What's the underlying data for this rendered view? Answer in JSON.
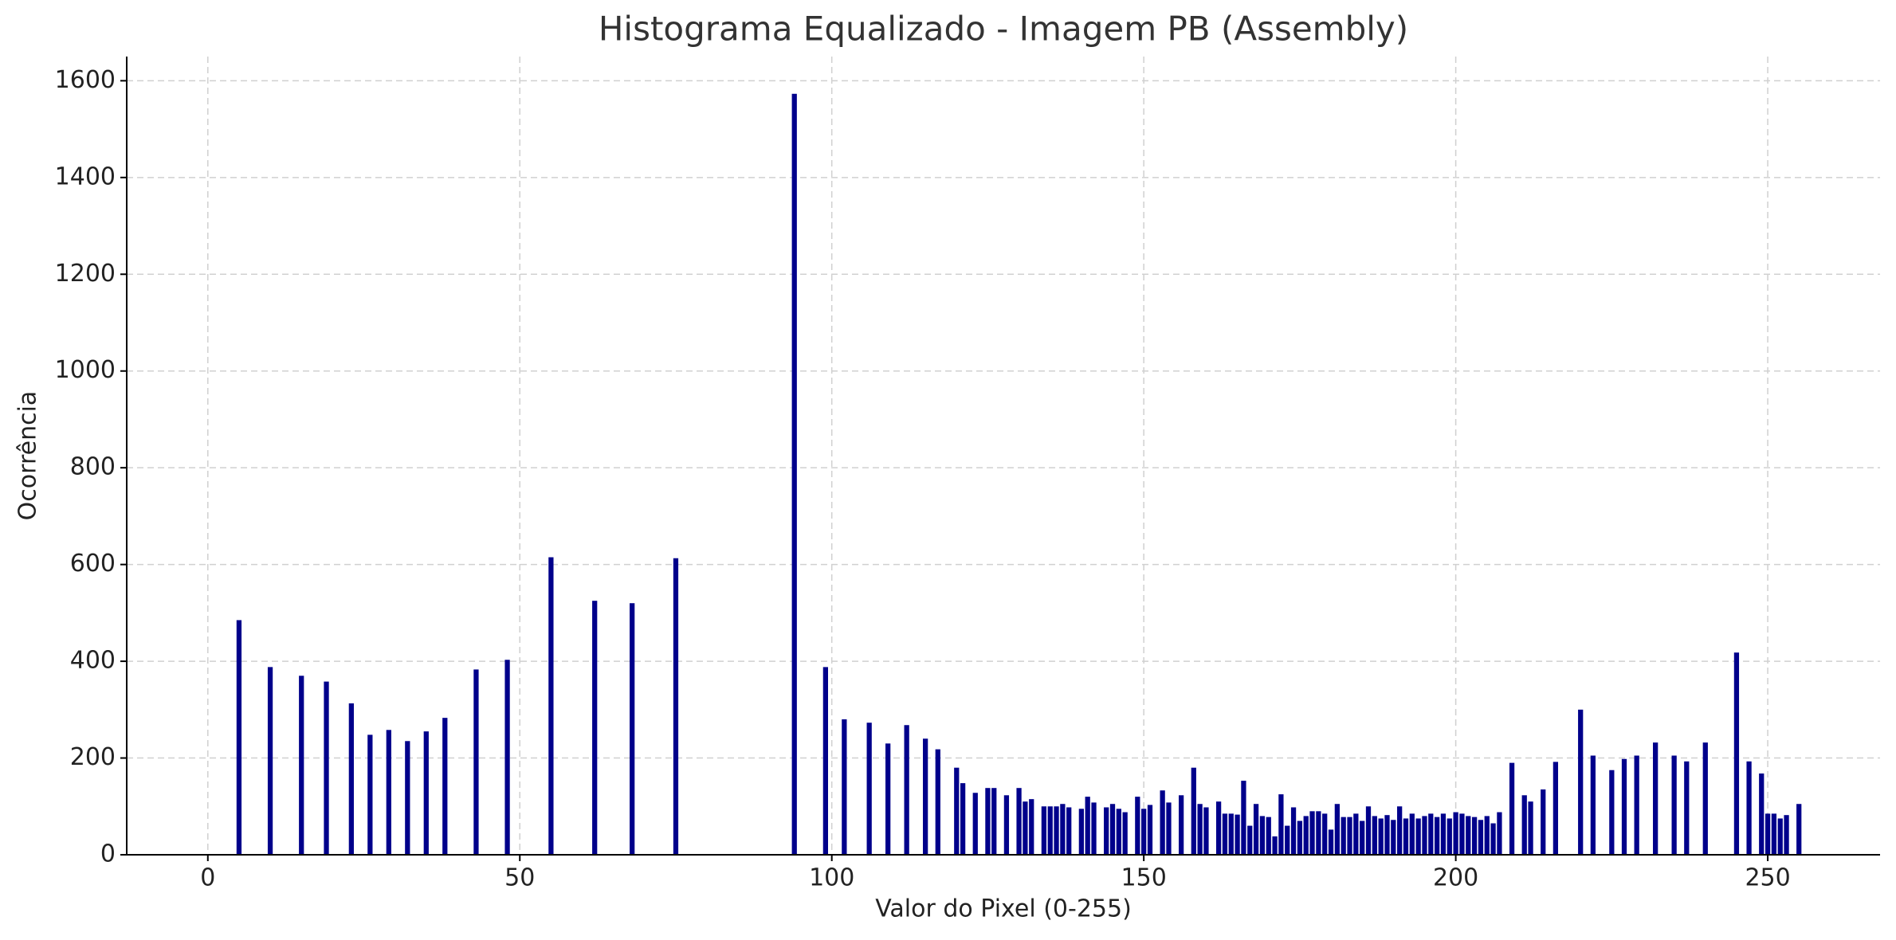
{
  "chart_data": {
    "type": "bar",
    "title": "Histograma Equalizado - Imagem PB (Assembly)",
    "x_label": "Valor do Pixel (0-255)",
    "y_label": "Ocorrência",
    "color": "#00008b",
    "bar_width": 0.8,
    "grid": true,
    "xlim": [
      -13,
      268
    ],
    "ylim": [
      0,
      1650
    ],
    "xticks": [
      0,
      50,
      100,
      150,
      200,
      250
    ],
    "yticks": [
      0,
      200,
      400,
      600,
      800,
      1000,
      1200,
      1400,
      1600
    ],
    "x": [
      5,
      10,
      15,
      19,
      23,
      26,
      29,
      32,
      35,
      38,
      43,
      48,
      55,
      62,
      68,
      75,
      94,
      99,
      102,
      106,
      109,
      112,
      115,
      117,
      120,
      121,
      123,
      125,
      126,
      128,
      130,
      131,
      132,
      134,
      135,
      136,
      137,
      138,
      140,
      141,
      142,
      144,
      145,
      146,
      147,
      149,
      150,
      151,
      153,
      154,
      156,
      158,
      159,
      160,
      162,
      163,
      164,
      165,
      166,
      167,
      168,
      169,
      170,
      171,
      172,
      173,
      174,
      175,
      176,
      177,
      178,
      179,
      180,
      181,
      182,
      183,
      184,
      185,
      186,
      187,
      188,
      189,
      190,
      191,
      192,
      193,
      194,
      195,
      196,
      197,
      198,
      199,
      200,
      201,
      202,
      203,
      204,
      205,
      206,
      207,
      209,
      211,
      212,
      214,
      216,
      220,
      222,
      225,
      227,
      229,
      232,
      235,
      237,
      240,
      245,
      247,
      249,
      250,
      251,
      252,
      253,
      255
    ],
    "values": [
      485,
      388,
      370,
      358,
      313,
      248,
      258,
      235,
      255,
      283,
      383,
      403,
      615,
      525,
      520,
      613,
      1573,
      388,
      280,
      273,
      230,
      268,
      240,
      218,
      180,
      148,
      128,
      138,
      138,
      123,
      138,
      110,
      115,
      100,
      100,
      100,
      105,
      98,
      95,
      120,
      108,
      98,
      105,
      95,
      88,
      120,
      95,
      103,
      133,
      108,
      123,
      180,
      105,
      98,
      110,
      85,
      85,
      83,
      153,
      60,
      105,
      80,
      78,
      38,
      125,
      60,
      98,
      70,
      80,
      90,
      90,
      85,
      52,
      105,
      78,
      78,
      85,
      70,
      100,
      80,
      75,
      82,
      72,
      100,
      75,
      85,
      75,
      80,
      85,
      78,
      85,
      75,
      88,
      85,
      80,
      78,
      72,
      80,
      65,
      88,
      190,
      123,
      110,
      135,
      192,
      300,
      205,
      175,
      198,
      205,
      232,
      205,
      193,
      232,
      418,
      193,
      168,
      85,
      85,
      75,
      82,
      105
    ]
  }
}
